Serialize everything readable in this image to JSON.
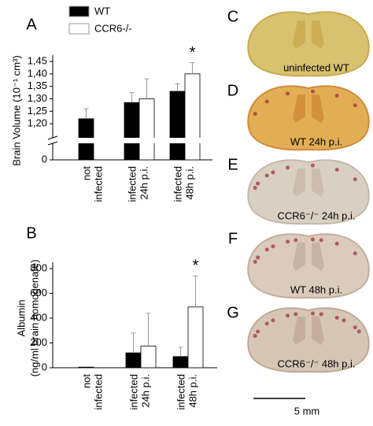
{
  "chart_data": [
    {
      "type": "bar",
      "label": "A",
      "ylabel": [
        "Brain Volume (10⁻¹ cm³)"
      ],
      "categories": [
        [
          "not",
          "infected"
        ],
        [
          "infected",
          "24h p.i."
        ],
        [
          "infected",
          "48h p.i."
        ]
      ],
      "series": [
        {
          "name": "WT",
          "color": "#000000",
          "values": [
            1.22,
            1.285,
            1.33
          ],
          "errors": [
            0.04,
            0.04,
            0.03
          ]
        },
        {
          "name": "CCR6-/-",
          "color": "#ffffff",
          "values": [
            null,
            1.3,
            1.4
          ],
          "errors": [
            null,
            0.08,
            0.045
          ]
        }
      ],
      "ylim": [
        1.15,
        1.45
      ],
      "axis_break": true,
      "yticks": [
        0,
        {
          "value": 1.2,
          "label": "1,20"
        },
        {
          "value": 1.25,
          "label": "1,25"
        },
        {
          "value": 1.3,
          "label": "1,30"
        },
        {
          "value": 1.35,
          "label": "1,35"
        },
        {
          "value": 1.4,
          "label": "1,40"
        },
        {
          "value": 1.45,
          "label": "1,45"
        }
      ],
      "significance": [
        null,
        null,
        "*"
      ]
    },
    {
      "type": "bar",
      "label": "B",
      "ylabel": [
        "Albumin",
        "(ng/ml brain homogenate)"
      ],
      "categories": [
        [
          "not",
          "infected"
        ],
        [
          "infected",
          "24h p.i."
        ],
        [
          "infected",
          "48h p.i."
        ]
      ],
      "series": [
        {
          "name": "WT",
          "color": "#000000",
          "values": [
            5,
            120,
            90
          ],
          "errors": [
            null,
            160,
            75
          ]
        },
        {
          "name": "CCR6-/-",
          "color": "#ffffff",
          "values": [
            null,
            175,
            490
          ],
          "errors": [
            null,
            265,
            250
          ]
        }
      ],
      "ylim": [
        0,
        800
      ],
      "yticks": [
        0,
        200,
        400,
        600,
        800
      ],
      "significance": [
        null,
        null,
        "*"
      ]
    }
  ],
  "images": [
    {
      "label": "C",
      "caption": "uninfected WT"
    },
    {
      "label": "D",
      "caption": "WT 24h p.i."
    },
    {
      "label": "E",
      "caption": "CCR6⁻/⁻ 24h p.i."
    },
    {
      "label": "F",
      "caption": "WT 48h p.i."
    },
    {
      "label": "G",
      "caption": "CCR6⁻/⁻ 48h p.i."
    }
  ],
  "scale_bar": "5 mm"
}
